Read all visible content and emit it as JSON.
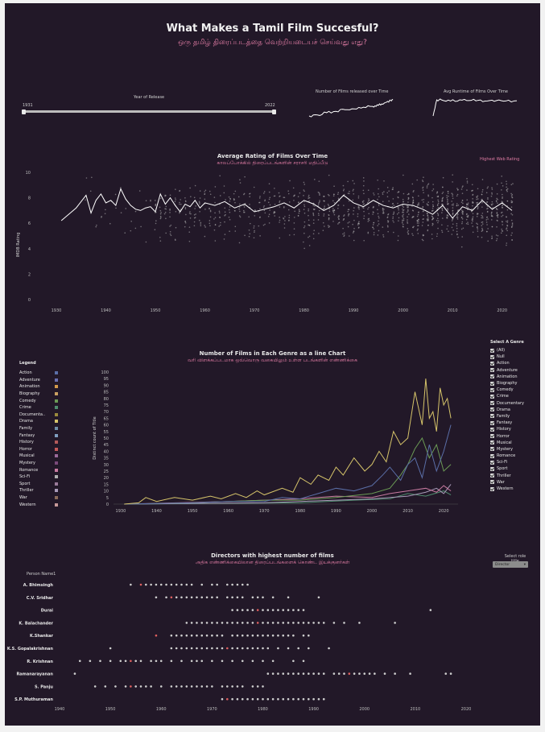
{
  "header": {
    "title": "What Makes a Tamil Film Succesful?",
    "subtitle": "ஒரு தமிழ் திரைப்படத்தை வெற்றியடையச் செய்வது எது?"
  },
  "year_filter": {
    "label": "Year of Release",
    "min": "1931",
    "max": "2022",
    "value_start": 1931,
    "value_end": 2022
  },
  "spark1": {
    "title": "Number of Films released over Time"
  },
  "spark2": {
    "title": "Avg Runtime of Films Over Time"
  },
  "chart1": {
    "title": "Average Rating of Films Over Time",
    "subtitle": "காலப்போக்கில் திரைப்படங்களின் சராசரி மதிப்பீடு",
    "highest_label": "Highest Web Rating",
    "ylabel": "IMDB Rating"
  },
  "chart2": {
    "title": "Number of Films in Each Genre as a line Chart",
    "subtitle": "வரி விளக்கப்படமாக ஒவ்வொரு வகையிலும் உள்ள படங்களின் எண்ணிக்கை",
    "ylabel": "Distinct count of Title",
    "legend_title": "Legend",
    "filter_title": "Select A Genre"
  },
  "chart3": {
    "title": "Directors with highest number of films",
    "subtitle": "அதிக எண்ணிக்கையிலான திரைப்படங்களைக் கொண்ட இயக்குனர்கள்",
    "row_header": "Person Name1",
    "role_label_1": "Select role",
    "role_label_2": "title",
    "role_value": "Director"
  },
  "genre_filter": [
    "(All)",
    "Null",
    "Action",
    "Adventure",
    "Animation",
    "Biography",
    "Comedy",
    "Crime",
    "Documentary",
    "Drama",
    "Family",
    "Fantasy",
    "History",
    "Horror",
    "Musical",
    "Mystery",
    "Romance",
    "Sci-Fi",
    "Sport",
    "Thriller",
    "War",
    "Western"
  ],
  "colors": {
    "background": "#221828",
    "accent_pink": "#e07ca4",
    "line_white": "#ffffff",
    "drama": "#d6c46a"
  },
  "chart_data": [
    {
      "type": "line",
      "title": "Number of Films released over Time",
      "x": [
        1931,
        1940,
        1950,
        1960,
        1970,
        1980,
        1990,
        2000,
        2005,
        2010,
        2015,
        2020,
        2022
      ],
      "values": [
        2,
        8,
        22,
        30,
        40,
        45,
        55,
        60,
        70,
        75,
        85,
        95,
        100
      ]
    },
    {
      "type": "line",
      "title": "Avg Runtime of Films Over Time",
      "x": [
        1931,
        1935,
        1940,
        1950,
        1960,
        1970,
        1980,
        1990,
        2000,
        2010,
        2022
      ],
      "values": [
        80,
        150,
        150,
        145,
        150,
        147,
        148,
        145,
        147,
        145,
        146
      ]
    },
    {
      "type": "line",
      "title": "Average Rating of Films Over Time",
      "ylabel": "IMDB Rating",
      "ylim": [
        0,
        10
      ],
      "yticks": [
        0,
        2,
        4,
        6,
        8,
        10
      ],
      "xticks": [
        1930,
        1940,
        1950,
        1960,
        1970,
        1980,
        1990,
        2000,
        2010,
        2020
      ],
      "x": [
        1931,
        1934,
        1936,
        1937,
        1938,
        1939,
        1940,
        1941,
        1942,
        1943,
        1944,
        1945,
        1946,
        1947,
        1948,
        1949,
        1950,
        1951,
        1952,
        1953,
        1954,
        1955,
        1956,
        1957,
        1958,
        1959,
        1960,
        1962,
        1964,
        1966,
        1968,
        1970,
        1972,
        1974,
        1976,
        1978,
        1980,
        1982,
        1984,
        1986,
        1988,
        1990,
        1992,
        1994,
        1996,
        1998,
        2000,
        2002,
        2004,
        2006,
        2008,
        2010,
        2012,
        2014,
        2016,
        2018,
        2020,
        2022
      ],
      "values": [
        6.2,
        7.2,
        8.2,
        6.8,
        7.8,
        8.3,
        7.6,
        7.8,
        7.4,
        8.7,
        7.9,
        7.4,
        7.1,
        7.0,
        7.2,
        7.3,
        6.9,
        8.3,
        7.5,
        8.0,
        7.4,
        6.9,
        7.5,
        7.3,
        7.8,
        7.2,
        7.6,
        7.4,
        7.7,
        7.2,
        7.5,
        6.9,
        7.1,
        7.3,
        7.6,
        7.2,
        7.8,
        7.5,
        7.0,
        7.4,
        8.2,
        7.6,
        7.3,
        7.8,
        7.4,
        7.2,
        7.5,
        7.4,
        7.1,
        6.7,
        7.4,
        6.4,
        7.3,
        7.0,
        7.8,
        7.1,
        7.6,
        7.0
      ]
    },
    {
      "type": "line",
      "title": "Number of Films in Each Genre as a line Chart",
      "ylabel": "Distinct count of Title",
      "ylim": [
        0,
        100
      ],
      "yticks": [
        0,
        5,
        10,
        15,
        20,
        25,
        30,
        35,
        40,
        45,
        50,
        55,
        60,
        65,
        70,
        75,
        80,
        85,
        90,
        95,
        100
      ],
      "xticks": [
        1930,
        1940,
        1950,
        1960,
        1970,
        1980,
        1990,
        2000,
        2010,
        2020
      ],
      "legend": [
        {
          "name": "Action",
          "color": "#5b6fa8"
        },
        {
          "name": "Adventure",
          "color": "#6a6fb0"
        },
        {
          "name": "Animation",
          "color": "#d49a4a"
        },
        {
          "name": "Biography",
          "color": "#c9a062"
        },
        {
          "name": "Comedy",
          "color": "#6b9a55"
        },
        {
          "name": "Crime",
          "color": "#4f8d6e"
        },
        {
          "name": "Documenta..",
          "color": "#9a8a3c"
        },
        {
          "name": "Drama",
          "color": "#d6c46a"
        },
        {
          "name": "Family",
          "color": "#6f8fa8"
        },
        {
          "name": "Fantasy",
          "color": "#7f9fc0"
        },
        {
          "name": "History",
          "color": "#b35a5a"
        },
        {
          "name": "Horror",
          "color": "#c45a5a"
        },
        {
          "name": "Musical",
          "color": "#9a6a9a"
        },
        {
          "name": "Mystery",
          "color": "#7a4a7a"
        },
        {
          "name": "Romance",
          "color": "#c87aa0"
        },
        {
          "name": "Sci-Fi",
          "color": "#b0b0b0"
        },
        {
          "name": "Sport",
          "color": "#9a7a9a"
        },
        {
          "name": "Thriller",
          "color": "#a89ab8"
        },
        {
          "name": "War",
          "color": "#8a6a5a"
        },
        {
          "name": "Western",
          "color": "#c89a9a"
        }
      ],
      "series": [
        {
          "name": "Drama",
          "color": "#d6c46a",
          "x": [
            1931,
            1935,
            1937,
            1940,
            1945,
            1950,
            1955,
            1958,
            1962,
            1965,
            1968,
            1970,
            1975,
            1978,
            1980,
            1983,
            1985,
            1988,
            1990,
            1992,
            1995,
            1998,
            2000,
            2002,
            2004,
            2006,
            2008,
            2010,
            2012,
            2014,
            2015,
            2016,
            2017,
            2018,
            2019,
            2020,
            2021,
            2022
          ],
          "values": [
            0,
            1,
            5,
            2,
            5,
            3,
            6,
            4,
            8,
            5,
            10,
            7,
            12,
            9,
            20,
            15,
            22,
            18,
            28,
            22,
            35,
            25,
            30,
            40,
            32,
            55,
            45,
            50,
            85,
            60,
            95,
            65,
            70,
            55,
            88,
            75,
            80,
            65
          ]
        },
        {
          "name": "Action",
          "color": "#5b6fa8",
          "x": [
            1931,
            1950,
            1960,
            1970,
            1975,
            1980,
            1985,
            1990,
            1995,
            2000,
            2003,
            2005,
            2008,
            2010,
            2012,
            2014,
            2016,
            2018,
            2020,
            2022
          ],
          "values": [
            0,
            1,
            2,
            2,
            5,
            4,
            8,
            12,
            10,
            14,
            22,
            28,
            18,
            30,
            35,
            20,
            45,
            25,
            40,
            60
          ]
        },
        {
          "name": "Comedy",
          "color": "#6b9a55",
          "x": [
            1931,
            1950,
            1960,
            1970,
            1980,
            1990,
            2000,
            2005,
            2008,
            2010,
            2012,
            2014,
            2016,
            2018,
            2020,
            2022
          ],
          "values": [
            0,
            1,
            2,
            3,
            3,
            5,
            8,
            12,
            22,
            30,
            42,
            50,
            35,
            45,
            25,
            30
          ]
        },
        {
          "name": "Romance",
          "color": "#c87aa0",
          "x": [
            1931,
            1960,
            1980,
            1990,
            2000,
            2005,
            2010,
            2015,
            2018,
            2020,
            2022
          ],
          "values": [
            0,
            2,
            4,
            6,
            5,
            8,
            10,
            12,
            9,
            14,
            10
          ]
        },
        {
          "name": "Thriller",
          "color": "#a89ab8",
          "x": [
            1931,
            1970,
            1990,
            2000,
            2010,
            2015,
            2018,
            2020,
            2022
          ],
          "values": [
            0,
            1,
            3,
            4,
            6,
            9,
            12,
            8,
            15
          ]
        },
        {
          "name": "Crime",
          "color": "#4f8d6e",
          "x": [
            1931,
            1980,
            1995,
            2005,
            2010,
            2015,
            2020,
            2022
          ],
          "values": [
            0,
            1,
            3,
            4,
            8,
            6,
            10,
            7
          ]
        }
      ]
    },
    {
      "type": "scatter",
      "title": "Directors with highest number of films",
      "xticks": [
        1940,
        1950,
        1960,
        1970,
        1980,
        1990,
        2000,
        2010,
        2020
      ],
      "categories": [
        "A. Bhimsingh",
        "C.V. Sridhar",
        "Durai",
        "K. Balachander",
        "K.Shankar",
        "K.S. Gopalakrishnan",
        "R. Krishnan",
        "Ramanarayanan",
        "S. Panju",
        "S.P. Muthuraman"
      ],
      "series": [
        {
          "name": "A. Bhimsingh",
          "x": [
            1954,
            1956,
            1957,
            1958,
            1959,
            1960,
            1961,
            1962,
            1963,
            1964,
            1965,
            1966,
            1968,
            1970,
            1971,
            1973,
            1974,
            1975,
            1976,
            1977
          ],
          "highlight": 1956
        },
        {
          "name": "C.V. Sridhar",
          "x": [
            1959,
            1961,
            1962,
            1963,
            1964,
            1965,
            1966,
            1967,
            1968,
            1969,
            1970,
            1971,
            1973,
            1974,
            1975,
            1976,
            1978,
            1979,
            1980,
            1982,
            1985,
            1991
          ],
          "highlight": 1962
        },
        {
          "name": "Durai",
          "x": [
            1974,
            1975,
            1976,
            1977,
            1978,
            1979,
            1980,
            1981,
            1982,
            1983,
            1984,
            1985,
            1986,
            1987,
            1988,
            2013
          ],
          "highlight": 1979
        },
        {
          "name": "K. Balachander",
          "x": [
            1965,
            1966,
            1967,
            1968,
            1969,
            1970,
            1971,
            1972,
            1973,
            1974,
            1975,
            1976,
            1977,
            1978,
            1979,
            1980,
            1981,
            1982,
            1983,
            1984,
            1985,
            1986,
            1987,
            1988,
            1989,
            1990,
            1991,
            1992,
            1994,
            1996,
            1999,
            2006
          ],
          "highlight": 1979
        },
        {
          "name": "K.Shankar",
          "x": [
            1959,
            1962,
            1963,
            1964,
            1965,
            1966,
            1967,
            1968,
            1969,
            1970,
            1971,
            1972,
            1974,
            1975,
            1976,
            1977,
            1978,
            1979,
            1980,
            1981,
            1982,
            1983,
            1984,
            1985,
            1986,
            1988,
            1989
          ],
          "highlight": 1959
        },
        {
          "name": "K.S. Gopalakrishnan",
          "x": [
            1950,
            1962,
            1963,
            1964,
            1965,
            1966,
            1967,
            1968,
            1969,
            1970,
            1971,
            1972,
            1973,
            1974,
            1975,
            1976,
            1977,
            1978,
            1979,
            1980,
            1981,
            1983,
            1985,
            1987,
            1989,
            1993
          ],
          "highlight": 1973
        },
        {
          "name": "R. Krishnan",
          "x": [
            1944,
            1946,
            1948,
            1950,
            1952,
            1953,
            1954,
            1955,
            1956,
            1958,
            1959,
            1960,
            1962,
            1964,
            1966,
            1967,
            1968,
            1970,
            1972,
            1974,
            1976,
            1978,
            1980,
            1982,
            1986,
            1988
          ],
          "highlight": 1954
        },
        {
          "name": "Ramanarayanan",
          "x": [
            1943,
            1981,
            1982,
            1983,
            1984,
            1985,
            1986,
            1987,
            1988,
            1989,
            1990,
            1991,
            1992,
            1994,
            1995,
            1996,
            1997,
            1998,
            1999,
            2000,
            2001,
            2002,
            2004,
            2006,
            2009,
            2016,
            2017
          ],
          "highlight": 1997
        },
        {
          "name": "S. Panju",
          "x": [
            1947,
            1949,
            1951,
            1953,
            1954,
            1955,
            1956,
            1957,
            1958,
            1960,
            1962,
            1963,
            1964,
            1965,
            1966,
            1967,
            1968,
            1969,
            1970,
            1972,
            1973,
            1974,
            1975,
            1976,
            1978,
            1979,
            1980
          ],
          "highlight": 1954
        },
        {
          "name": "S.P. Muthuraman",
          "x": [
            1972,
            1973,
            1974,
            1975,
            1976,
            1977,
            1978,
            1979,
            1980,
            1981,
            1982,
            1983,
            1984,
            1985,
            1986,
            1987,
            1988,
            1989,
            1990,
            1991,
            1992
          ],
          "highlight": 1973
        }
      ]
    }
  ]
}
